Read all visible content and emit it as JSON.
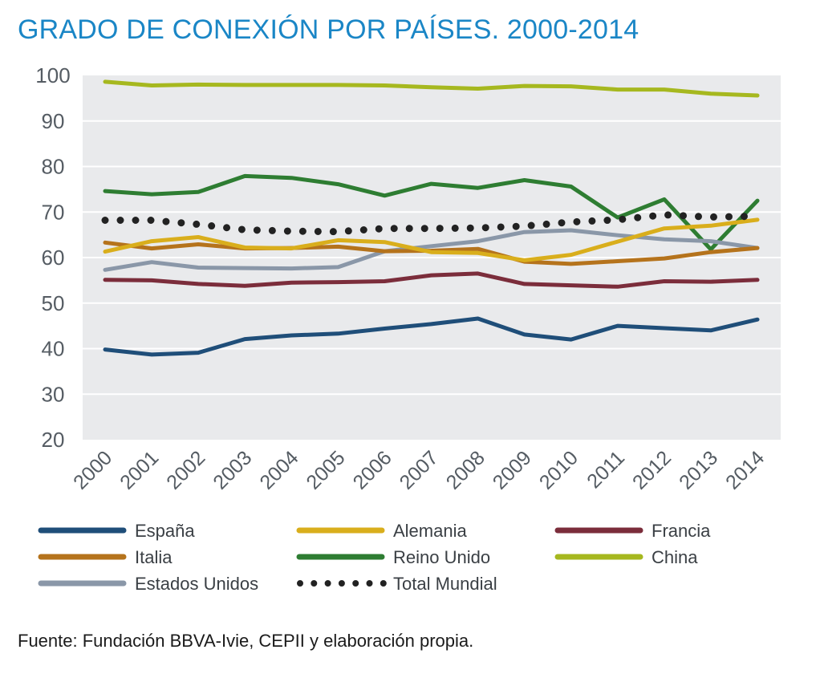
{
  "title": "GRADO DE CONEXIÓN POR PAÍSES. 2000-2014",
  "source": "Fuente: Fundación BBVA-Ivie, CEPII y elaboración propia.",
  "colors": {
    "plot_background": "#e9eaec",
    "gridline": "#ffffff",
    "title": "#1a86c6"
  },
  "chart_data": {
    "type": "line",
    "title": "GRADO DE CONEXIÓN POR PAÍSES. 2000-2014",
    "xlabel": "",
    "ylabel": "",
    "ylim": [
      20,
      100
    ],
    "yticks": [
      20,
      30,
      40,
      50,
      60,
      70,
      80,
      90,
      100
    ],
    "grid": true,
    "legend_position": "bottom",
    "categories": [
      "2000",
      "2001",
      "2002",
      "2003",
      "2004",
      "2005",
      "2006",
      "2007",
      "2008",
      "2009",
      "2010",
      "2011",
      "2012",
      "2013",
      "2014"
    ],
    "series": [
      {
        "name": "España",
        "color": "#1f4e79",
        "style": "solid",
        "values": [
          39.8,
          38.7,
          39.1,
          42.1,
          42.9,
          43.3,
          44.4,
          45.4,
          46.6,
          43.1,
          42.0,
          45.0,
          44.5,
          44.0,
          46.4
        ]
      },
      {
        "name": "Alemania",
        "color": "#d9ae1c",
        "style": "solid",
        "values": [
          61.3,
          63.6,
          64.5,
          62.2,
          62.0,
          63.8,
          63.4,
          61.2,
          61.0,
          59.4,
          60.6,
          63.5,
          66.4,
          67.0,
          68.3
        ]
      },
      {
        "name": "Francia",
        "color": "#7b2d3b",
        "style": "solid",
        "values": [
          55.1,
          55.0,
          54.2,
          53.8,
          54.5,
          54.6,
          54.8,
          56.1,
          56.5,
          54.2,
          53.9,
          53.6,
          54.8,
          54.7,
          55.1
        ]
      },
      {
        "name": "Italia",
        "color": "#b5731c",
        "style": "solid",
        "values": [
          63.3,
          62.0,
          62.9,
          62.0,
          62.1,
          62.4,
          61.4,
          61.5,
          61.9,
          59.1,
          58.6,
          59.2,
          59.8,
          61.2,
          62.1
        ]
      },
      {
        "name": "Reino Unido",
        "color": "#2e7d32",
        "style": "solid",
        "values": [
          74.6,
          73.9,
          74.4,
          77.9,
          77.5,
          76.1,
          73.6,
          76.2,
          75.3,
          77.0,
          75.6,
          68.8,
          72.8,
          61.8,
          72.5
        ]
      },
      {
        "name": "China",
        "color": "#a6b81f",
        "style": "solid",
        "values": [
          98.6,
          97.8,
          98.0,
          97.9,
          97.9,
          97.9,
          97.8,
          97.4,
          97.1,
          97.7,
          97.6,
          96.9,
          96.9,
          96.0,
          95.6
        ]
      },
      {
        "name": "Estados Unidos",
        "color": "#8a97a8",
        "style": "solid",
        "values": [
          57.3,
          59.0,
          57.8,
          57.7,
          57.6,
          57.9,
          61.4,
          62.5,
          63.6,
          65.6,
          66.0,
          64.9,
          64.0,
          63.6,
          62.1
        ]
      },
      {
        "name": "Total Mundial",
        "color": "#222222",
        "style": "dotted",
        "values": [
          68.2,
          68.2,
          67.3,
          66.1,
          65.8,
          65.7,
          66.4,
          66.4,
          66.5,
          66.9,
          67.8,
          68.3,
          69.4,
          68.9,
          69.1
        ]
      }
    ]
  }
}
